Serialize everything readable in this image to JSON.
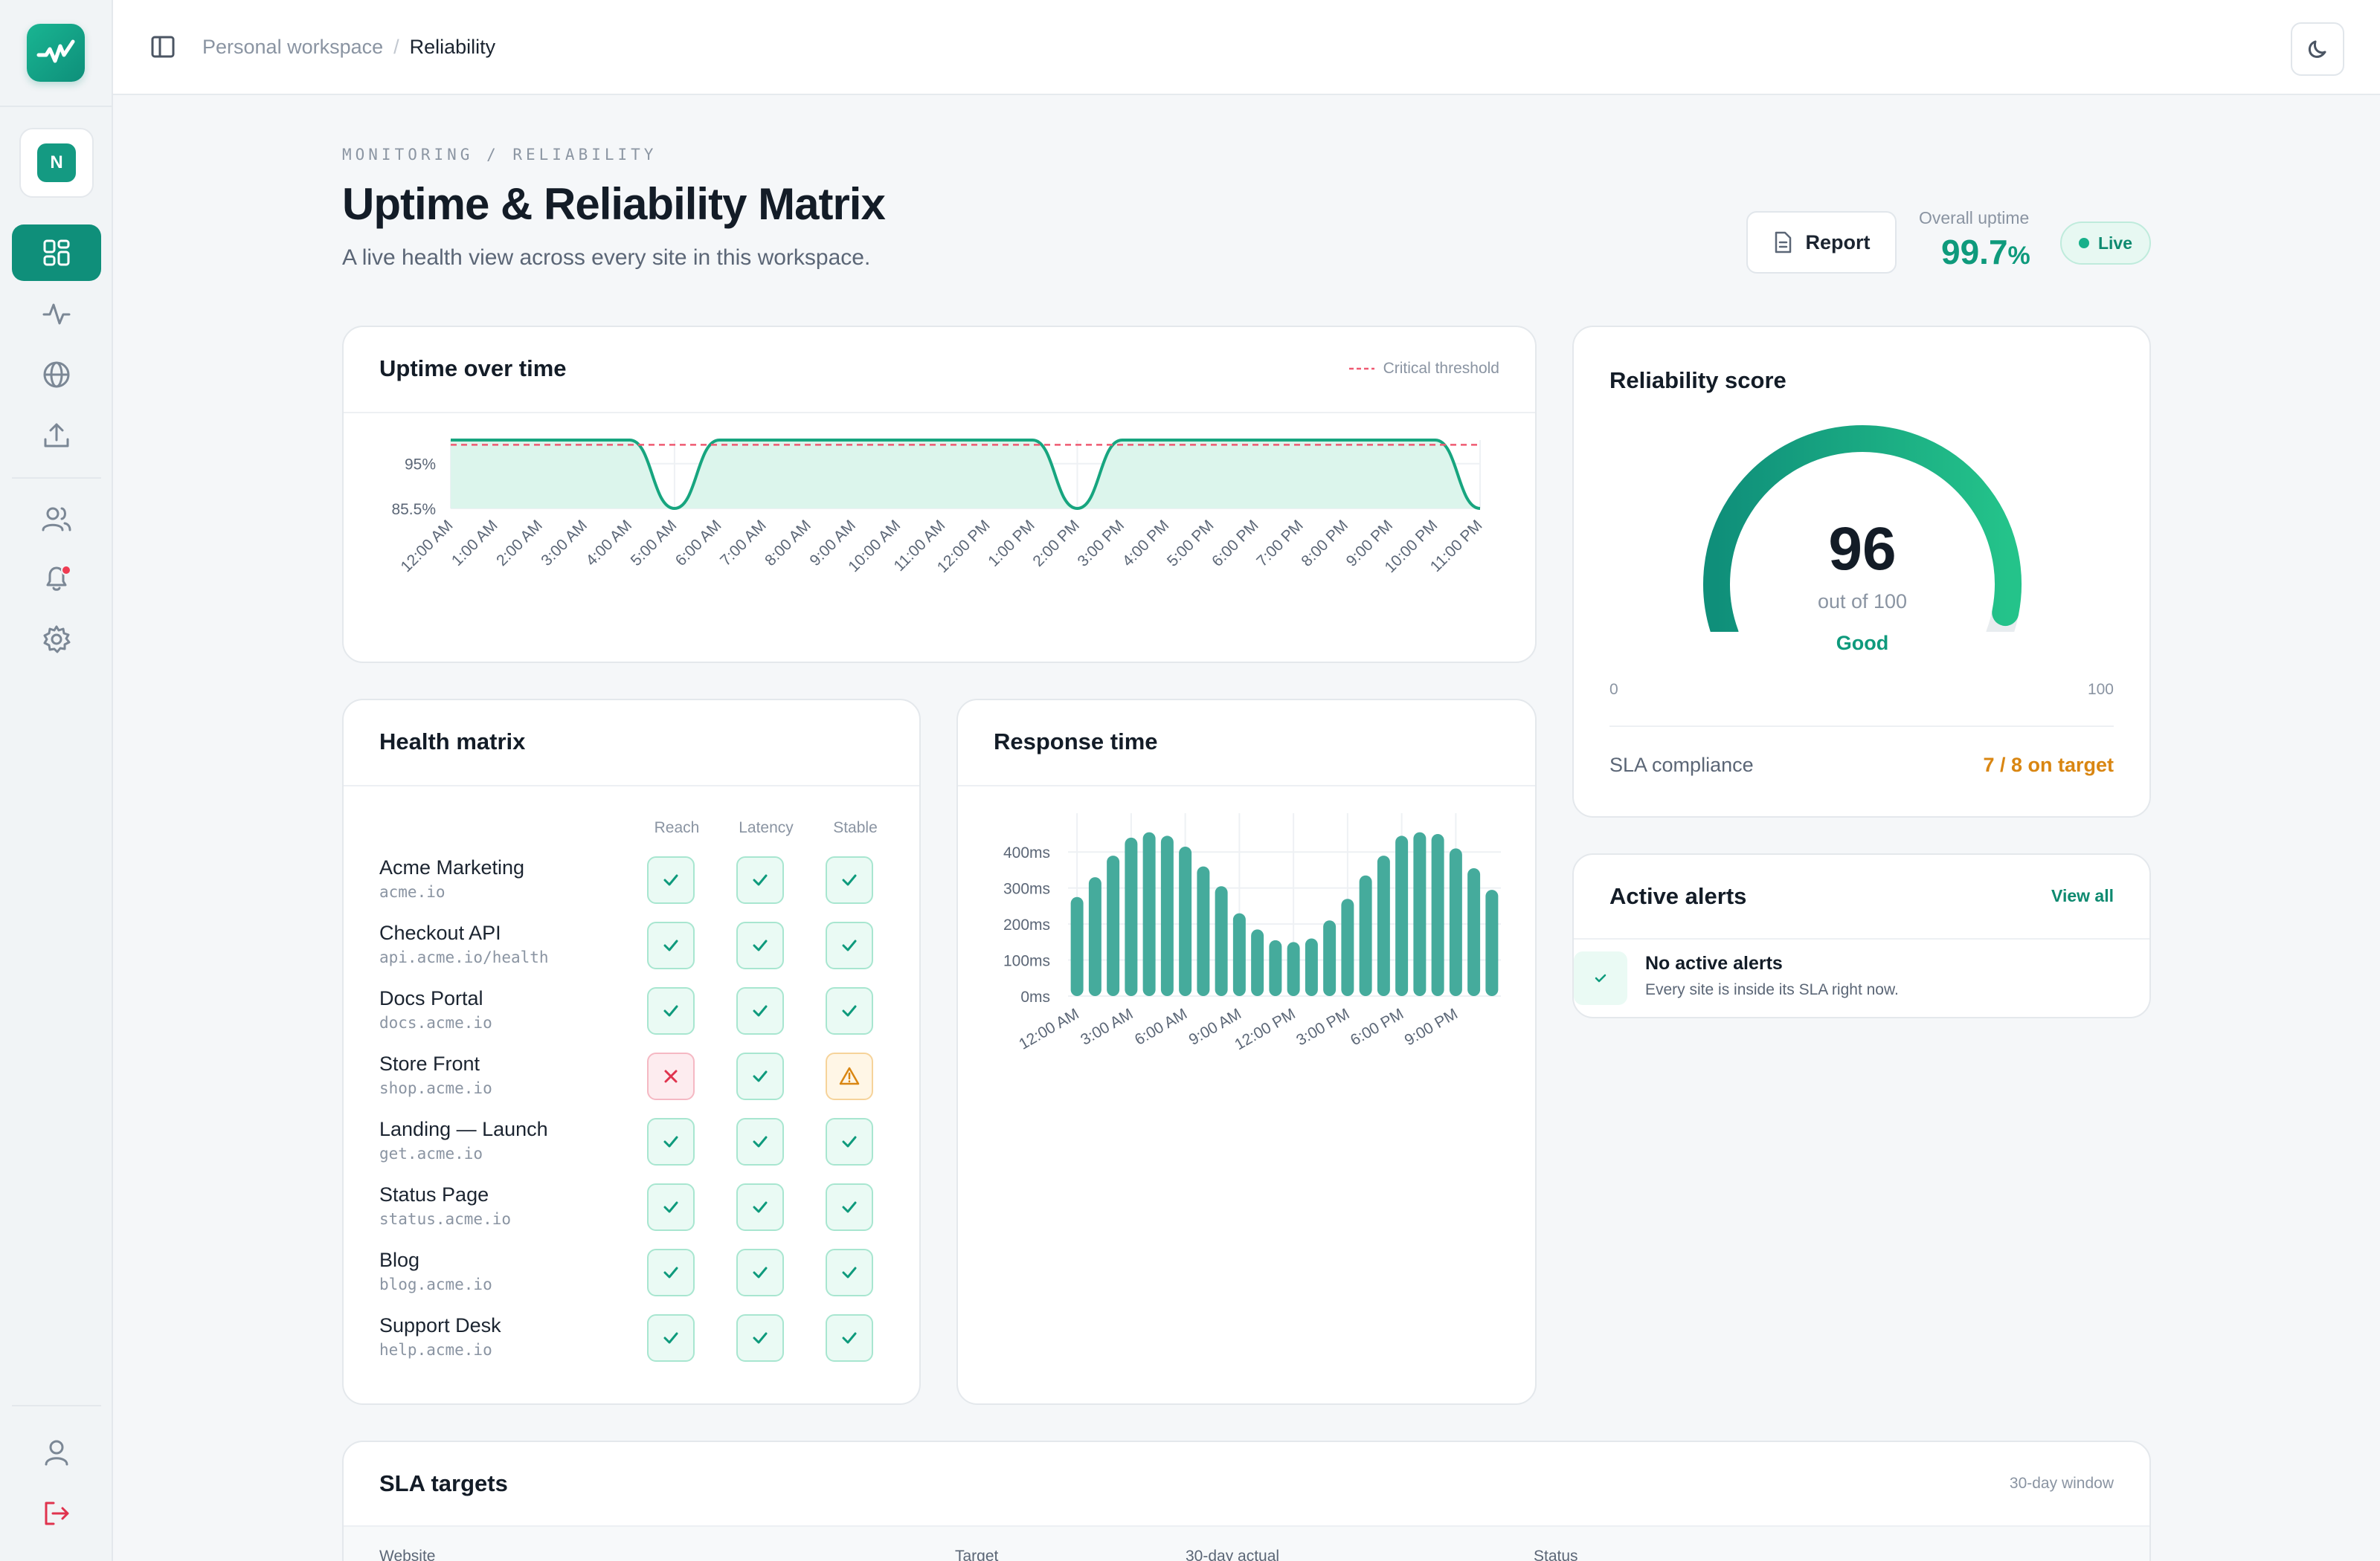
{
  "breadcrumb": {
    "parent": "Personal workspace",
    "separator": "/",
    "current": "Reliability"
  },
  "workspace": {
    "initial": "N"
  },
  "header": {
    "eyebrow": "MONITORING / RELIABILITY",
    "title": "Uptime & Reliability Matrix",
    "subtitle": "A live health view across every site in this workspace.",
    "report_label": "Report",
    "overall_label": "Overall uptime",
    "overall_value": "99.7",
    "overall_unit": "%",
    "live_label": "Live"
  },
  "uptime_card": {
    "title": "Uptime over time",
    "legend": "Critical threshold"
  },
  "health_matrix": {
    "title": "Health matrix",
    "columns": [
      "Reach",
      "Latency",
      "Stable"
    ],
    "rows": [
      {
        "name": "Acme Marketing",
        "domain": "acme.io",
        "status": [
          "ok",
          "ok",
          "ok"
        ]
      },
      {
        "name": "Checkout API",
        "domain": "api.acme.io/health",
        "status": [
          "ok",
          "ok",
          "ok"
        ]
      },
      {
        "name": "Docs Portal",
        "domain": "docs.acme.io",
        "status": [
          "ok",
          "ok",
          "ok"
        ]
      },
      {
        "name": "Store Front",
        "domain": "shop.acme.io",
        "status": [
          "bad",
          "ok",
          "warn"
        ]
      },
      {
        "name": "Landing — Launch",
        "domain": "get.acme.io",
        "status": [
          "ok",
          "ok",
          "ok"
        ]
      },
      {
        "name": "Status Page",
        "domain": "status.acme.io",
        "status": [
          "ok",
          "ok",
          "ok"
        ]
      },
      {
        "name": "Blog",
        "domain": "blog.acme.io",
        "status": [
          "ok",
          "ok",
          "ok"
        ]
      },
      {
        "name": "Support Desk",
        "domain": "help.acme.io",
        "status": [
          "ok",
          "ok",
          "ok"
        ]
      }
    ]
  },
  "response_card": {
    "title": "Response time"
  },
  "score_card": {
    "title": "Reliability score",
    "score": "96",
    "score_value": 96,
    "out_of": "out of 100",
    "rating": "Good",
    "min_label": "0",
    "max_label": "100",
    "sla_label": "SLA compliance",
    "sla_value": "7 / 8 on target"
  },
  "alerts_card": {
    "title": "Active alerts",
    "view_all": "View all",
    "empty_title": "No active alerts",
    "empty_text": "Every site is inside its SLA right now."
  },
  "sla_card": {
    "title": "SLA targets",
    "window": "30-day window",
    "columns": [
      "Website",
      "Target",
      "30-day actual",
      "Status"
    ]
  },
  "colors": {
    "accent": "#0f8f7a",
    "good": "#0e9a7c",
    "warn": "#d98612",
    "bad": "#e0334e"
  },
  "chart_data": [
    {
      "type": "area",
      "title": "Uptime over time",
      "x": [
        "12:00 AM",
        "1:00 AM",
        "2:00 AM",
        "3:00 AM",
        "4:00 AM",
        "5:00 AM",
        "6:00 AM",
        "7:00 AM",
        "8:00 AM",
        "9:00 AM",
        "10:00 AM",
        "11:00 AM",
        "12:00 PM",
        "1:00 PM",
        "2:00 PM",
        "3:00 PM",
        "4:00 PM",
        "5:00 PM",
        "6:00 PM",
        "7:00 PM",
        "8:00 PM",
        "9:00 PM",
        "10:00 PM",
        "11:00 PM"
      ],
      "series": [
        {
          "values": [
            100,
            100,
            100,
            100,
            100,
            85.5,
            100,
            100,
            100,
            100,
            100,
            100,
            100,
            100,
            85.5,
            100,
            100,
            100,
            100,
            100,
            100,
            100,
            100,
            85.5
          ]
        }
      ],
      "threshold": 99,
      "yticks": [
        "95%",
        "85.5%"
      ],
      "ylim": [
        85.5,
        100
      ],
      "grid": true
    },
    {
      "type": "bar",
      "title": "Response time",
      "categories": [
        "12:00 AM",
        "1:00 AM",
        "2:00 AM",
        "3:00 AM",
        "4:00 AM",
        "5:00 AM",
        "6:00 AM",
        "7:00 AM",
        "8:00 AM",
        "9:00 AM",
        "10:00 AM",
        "11:00 AM",
        "12:00 PM",
        "1:00 PM",
        "2:00 PM",
        "3:00 PM",
        "4:00 PM",
        "5:00 PM",
        "6:00 PM",
        "7:00 PM",
        "8:00 PM",
        "9:00 PM",
        "10:00 PM",
        "11:00 PM"
      ],
      "xtick_labels": [
        "12:00 AM",
        "3:00 AM",
        "6:00 AM",
        "9:00 AM",
        "12:00 PM",
        "3:00 PM",
        "6:00 PM",
        "9:00 PM"
      ],
      "values": [
        275,
        330,
        390,
        440,
        455,
        445,
        415,
        360,
        305,
        230,
        185,
        155,
        150,
        160,
        210,
        270,
        335,
        390,
        445,
        455,
        450,
        410,
        355,
        295
      ],
      "yticks": [
        "400ms",
        "300ms",
        "200ms",
        "100ms",
        "0ms"
      ],
      "ylim": [
        0,
        450
      ],
      "grid": true
    }
  ]
}
